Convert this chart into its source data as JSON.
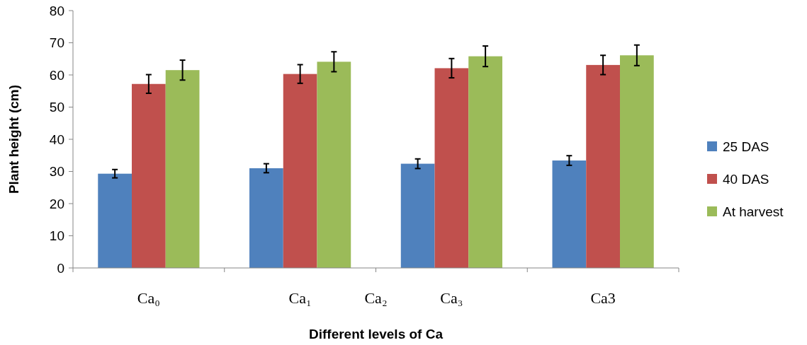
{
  "chart_data": {
    "type": "bar",
    "xlabel": "Different levels of Ca",
    "ylabel": "Plant height (cm)",
    "categories": [
      "Ca₀",
      "Ca₁",
      "Ca₃",
      "Ca3"
    ],
    "annotations": [
      "Ca₂"
    ],
    "series": [
      {
        "name": "25 DAS",
        "color": "#4f81bd",
        "values": [
          29.3,
          31.0,
          32.4,
          33.4
        ],
        "errors": [
          1.3,
          1.4,
          1.5,
          1.5
        ]
      },
      {
        "name": "40 DAS",
        "color": "#c0504d",
        "values": [
          57.2,
          60.3,
          62.1,
          63.1
        ],
        "errors": [
          2.9,
          2.9,
          3.0,
          3.0
        ]
      },
      {
        "name": "At harvest",
        "color": "#9bbb59",
        "values": [
          61.5,
          64.1,
          65.8,
          66.1
        ],
        "errors": [
          3.1,
          3.1,
          3.2,
          3.2
        ]
      }
    ],
    "ylim": [
      0,
      80
    ],
    "yticks": [
      0,
      10,
      20,
      30,
      40,
      50,
      60,
      70,
      80
    ],
    "grid": false,
    "legend": "right"
  }
}
